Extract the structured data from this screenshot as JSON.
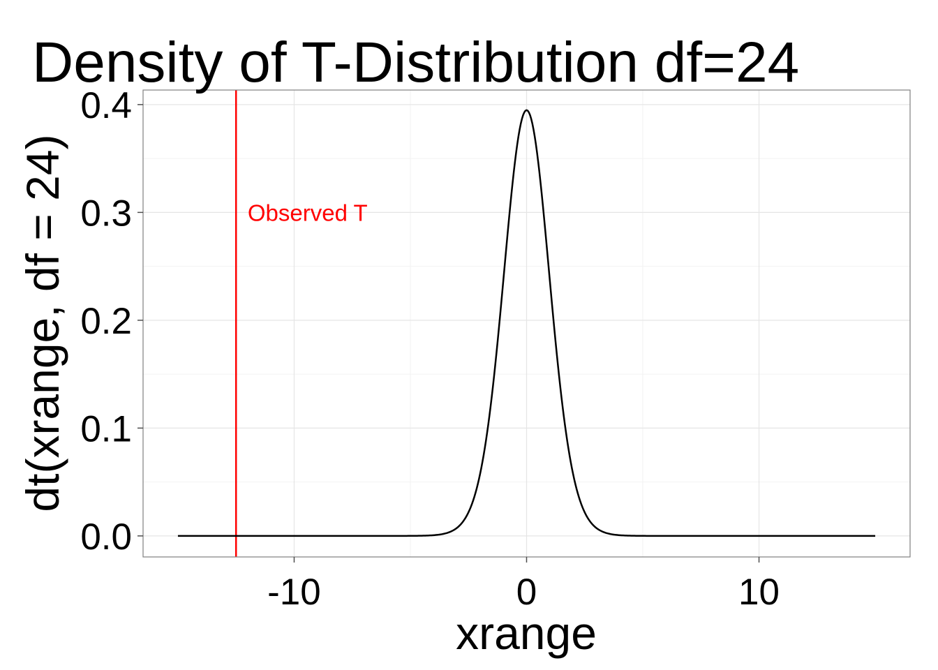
{
  "chart_data": {
    "type": "line",
    "title": "Density of T-Distribution df=24",
    "xlabel": "xrange",
    "ylabel": "dt(xrange, df = 24)",
    "df": 24,
    "x_range": [
      -15,
      15
    ],
    "xlim": [
      -16.5,
      16.5
    ],
    "ylim": [
      -0.0195,
      0.4135
    ],
    "x_ticks": [
      -10,
      0,
      10
    ],
    "x_tick_labels": [
      "-10",
      "0",
      "10"
    ],
    "y_ticks": [
      0.0,
      0.1,
      0.2,
      0.3,
      0.4
    ],
    "y_tick_labels": [
      "0.0",
      "0.1",
      "0.2",
      "0.3",
      "0.4"
    ],
    "grid": true,
    "series": [
      {
        "color": "#000000"
      }
    ],
    "vline": {
      "x": -12.5,
      "color": "#ff0000"
    },
    "annotation": {
      "text": "Observed T",
      "x": -12,
      "y": 0.3,
      "color": "#ff0000"
    }
  }
}
